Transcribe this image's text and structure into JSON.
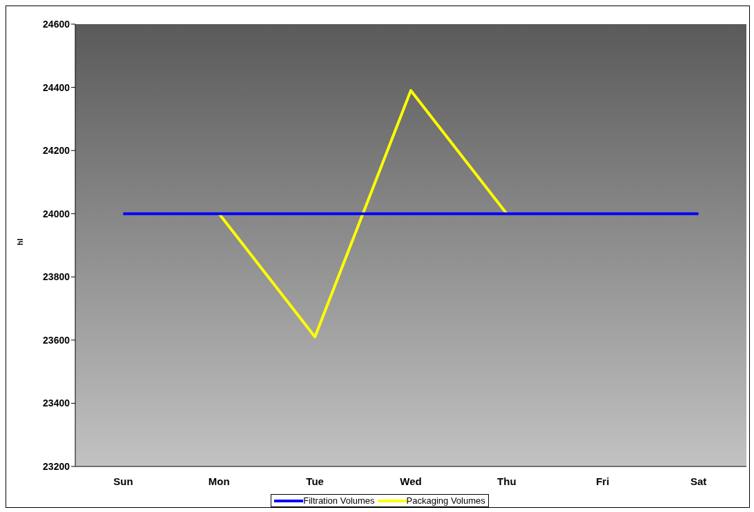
{
  "chart_data": {
    "type": "line",
    "ylabel": "hl",
    "categories": [
      "Sun",
      "Mon",
      "Tue",
      "Wed",
      "Thu",
      "Fri",
      "Sat"
    ],
    "series": [
      {
        "name": "Packaging Volumes",
        "color": "#ffff00",
        "values": [
          null,
          24000,
          23610,
          24390,
          24000,
          null,
          null
        ]
      },
      {
        "name": "Filtration Volumes",
        "color": "#0000ff",
        "values": [
          24000,
          24000,
          24000,
          24000,
          24000,
          24000,
          24000
        ]
      }
    ],
    "ylim": [
      23200,
      24600
    ],
    "yticks": [
      23200,
      23400,
      23600,
      23800,
      24000,
      24200,
      24400,
      24600
    ],
    "legend": "bottom",
    "marker": "none"
  }
}
